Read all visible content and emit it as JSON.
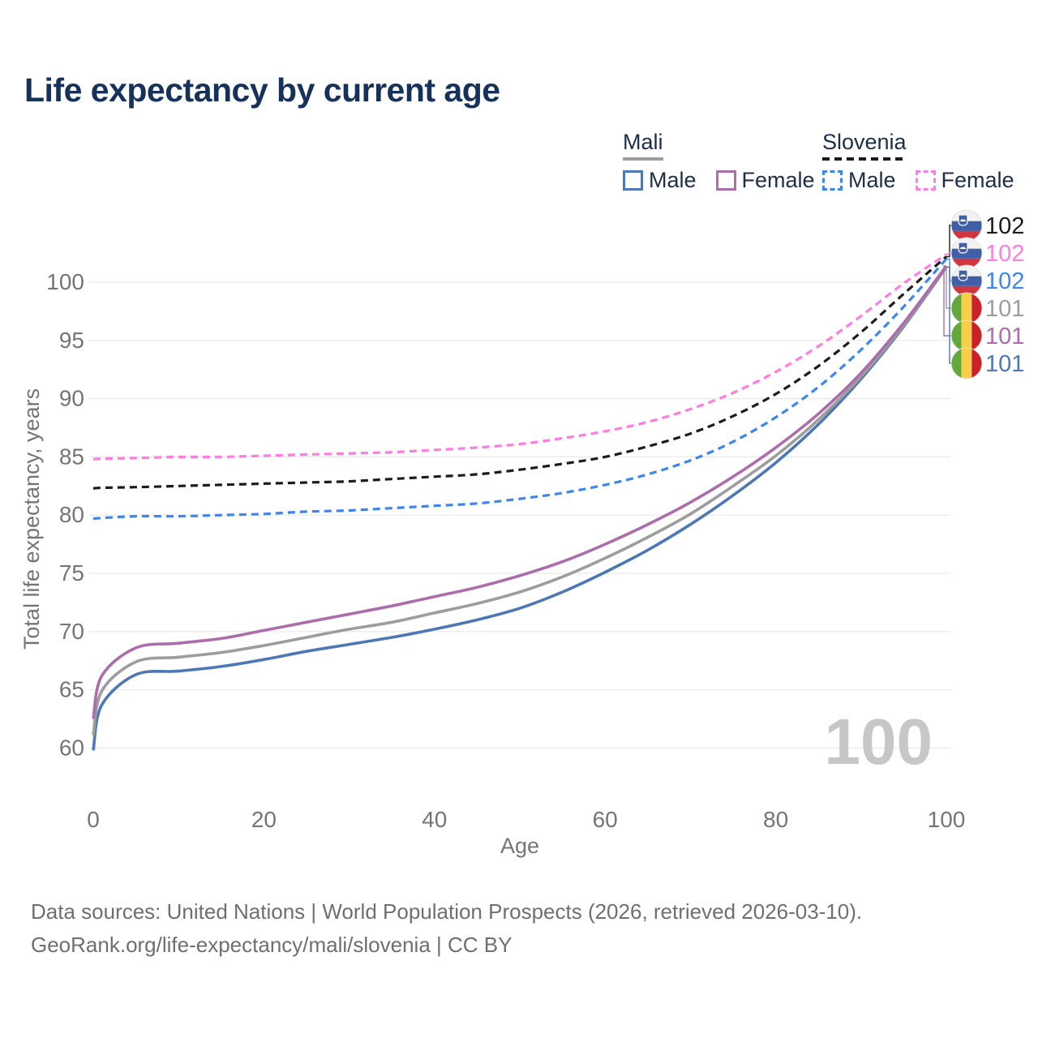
{
  "title": "Life expectancy by current age",
  "legend": {
    "groups": [
      {
        "name": "Mali",
        "line_style": "solid",
        "underline_color": "#9d9d9d",
        "items": [
          {
            "label": "Male",
            "color": "#4d78b6",
            "dashed": false
          },
          {
            "label": "Female",
            "color": "#ad6cab",
            "dashed": false
          }
        ]
      },
      {
        "name": "Slovenia",
        "line_style": "dashed",
        "underline_color": "#1c1c1c",
        "items": [
          {
            "label": "Male",
            "color": "#3b86f0",
            "dashed": true
          },
          {
            "label": "Female",
            "color": "#ff7ce0",
            "dashed": true
          }
        ]
      }
    ]
  },
  "chart_data": {
    "type": "line",
    "title": "Life expectancy by current age",
    "xlabel": "Age",
    "ylabel": "Total life expectancy, years",
    "xticks": [
      0,
      20,
      40,
      60,
      80,
      100
    ],
    "yticks": [
      60,
      65,
      70,
      75,
      80,
      85,
      90,
      95,
      100
    ],
    "xlim": [
      0,
      100
    ],
    "ylim": [
      58.5,
      103
    ],
    "grid": "horizontal-only",
    "grid_color": "#e9e9e9",
    "tick_color": "#757575",
    "watermark": "100",
    "watermark_color": "#c7c7c7",
    "x": [
      0,
      1,
      5,
      10,
      15,
      20,
      25,
      30,
      35,
      40,
      45,
      50,
      55,
      60,
      65,
      70,
      75,
      80,
      85,
      90,
      95,
      100
    ],
    "series": [
      {
        "id": "mali-male",
        "country": "Mali",
        "group": "Male",
        "color": "#4d78b6",
        "dashed": false,
        "flag": "mali",
        "end_label": "101",
        "label_row": 5,
        "values": [
          59.8,
          63.7,
          66.3,
          66.6,
          67.0,
          67.6,
          68.3,
          68.9,
          69.5,
          70.2,
          71.0,
          72.0,
          73.4,
          75.1,
          77.0,
          79.2,
          81.7,
          84.5,
          87.8,
          91.7,
          96.2,
          101.3
        ]
      },
      {
        "id": "mali-total",
        "country": "Mali",
        "group": "Total",
        "color": "#9d9d9d",
        "dashed": false,
        "flag": "mali",
        "end_label": "101",
        "label_row": 3,
        "values": [
          61.1,
          64.9,
          67.4,
          67.8,
          68.2,
          68.8,
          69.5,
          70.2,
          70.8,
          71.6,
          72.4,
          73.4,
          74.7,
          76.3,
          78.1,
          80.1,
          82.5,
          85.1,
          88.2,
          91.9,
          96.3,
          101.35
        ]
      },
      {
        "id": "mali-female",
        "country": "Mali",
        "group": "Female",
        "color": "#ad6cab",
        "dashed": false,
        "flag": "mali",
        "end_label": "101",
        "label_row": 4,
        "values": [
          62.5,
          66.2,
          68.6,
          69.0,
          69.4,
          70.1,
          70.8,
          71.5,
          72.2,
          73.0,
          73.8,
          74.8,
          76.0,
          77.5,
          79.2,
          81.1,
          83.3,
          85.8,
          88.7,
          92.2,
          96.5,
          101.4
        ]
      },
      {
        "id": "slovenia-male",
        "country": "Slovenia",
        "group": "Male",
        "color": "#3b86f0",
        "dashed": true,
        "flag": "slovenia",
        "end_label": "102",
        "label_row": 2,
        "values": [
          79.7,
          79.75,
          79.9,
          79.9,
          80.0,
          80.1,
          80.3,
          80.4,
          80.6,
          80.8,
          81.0,
          81.4,
          81.9,
          82.6,
          83.5,
          84.7,
          86.3,
          88.4,
          91.0,
          94.2,
          97.9,
          102.0
        ]
      },
      {
        "id": "slovenia-total",
        "country": "Slovenia",
        "group": "Total",
        "color": "#1c1c1c",
        "dashed": true,
        "flag": "slovenia",
        "end_label": "102",
        "label_row": 0,
        "values": [
          82.3,
          82.35,
          82.4,
          82.5,
          82.6,
          82.7,
          82.8,
          82.9,
          83.1,
          83.3,
          83.5,
          83.9,
          84.4,
          85.0,
          85.9,
          87.0,
          88.5,
          90.4,
          92.8,
          95.7,
          99.0,
          102.2
        ]
      },
      {
        "id": "slovenia-female",
        "country": "Slovenia",
        "group": "Female",
        "color": "#ff7ce0",
        "dashed": true,
        "flag": "slovenia",
        "end_label": "102",
        "label_row": 1,
        "values": [
          84.8,
          84.85,
          84.9,
          85.0,
          85.0,
          85.1,
          85.2,
          85.3,
          85.4,
          85.6,
          85.8,
          86.1,
          86.6,
          87.2,
          88.0,
          89.1,
          90.5,
          92.3,
          94.5,
          97.1,
          99.9,
          102.4
        ]
      }
    ]
  },
  "footer": {
    "line1": "Data sources: United Nations | World Population Prospects (2026, retrieved 2026-03-10).",
    "line2": "GeoRank.org/life-expectancy/mali/slovenia | CC BY"
  }
}
